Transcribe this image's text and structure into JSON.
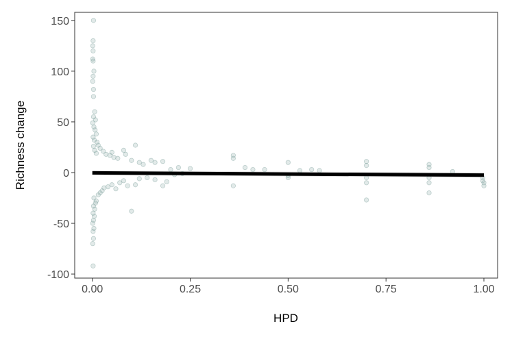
{
  "chart_data": {
    "type": "scatter",
    "title": "",
    "xlabel": "HPD",
    "ylabel": "Richness change",
    "xlim": [
      -0.045,
      1.035
    ],
    "ylim": [
      -104,
      158
    ],
    "x_ticks": [
      0,
      0.25,
      0.5,
      0.75,
      1
    ],
    "x_tick_labels": [
      "0.00",
      "0.25",
      "0.50",
      "0.75",
      "1.00"
    ],
    "y_ticks": [
      -100,
      -50,
      0,
      50,
      100,
      150
    ],
    "y_tick_labels": [
      "-100",
      "-50",
      "0",
      "50",
      "100",
      "150"
    ],
    "grid": false,
    "point_color": "#7a9e9a",
    "point_opacity": 0.22,
    "series": [
      {
        "type": "scatter",
        "points": [
          [
            0.003,
            150
          ],
          [
            0.002,
            130
          ],
          [
            0.001,
            125
          ],
          [
            0.002,
            120
          ],
          [
            0.001,
            112
          ],
          [
            0.002,
            110
          ],
          [
            0.004,
            100
          ],
          [
            0.002,
            95
          ],
          [
            0.001,
            90
          ],
          [
            0.003,
            82
          ],
          [
            0.003,
            75
          ],
          [
            0.006,
            60
          ],
          [
            0.003,
            55
          ],
          [
            0.008,
            52
          ],
          [
            0.001,
            49
          ],
          [
            0.004,
            45
          ],
          [
            0.007,
            42
          ],
          [
            0.01,
            38
          ],
          [
            0.002,
            35
          ],
          [
            0.005,
            32
          ],
          [
            0.012,
            30
          ],
          [
            0.015,
            27
          ],
          [
            0.003,
            26
          ],
          [
            0.02,
            24
          ],
          [
            0.006,
            22
          ],
          [
            0.028,
            21
          ],
          [
            0.01,
            19
          ],
          [
            0.035,
            18
          ],
          [
            0.045,
            17
          ],
          [
            0.05,
            20
          ],
          [
            0.055,
            15
          ],
          [
            0.065,
            14
          ],
          [
            0.08,
            22
          ],
          [
            0.085,
            18
          ],
          [
            0.1,
            12
          ],
          [
            0.11,
            27
          ],
          [
            0.12,
            10
          ],
          [
            0.13,
            8
          ],
          [
            0.15,
            12
          ],
          [
            0.16,
            10
          ],
          [
            0.18,
            11
          ],
          [
            0.2,
            3
          ],
          [
            0.22,
            5
          ],
          [
            0.25,
            4
          ],
          [
            0.36,
            17
          ],
          [
            0.36,
            14
          ],
          [
            0.36,
            -13
          ],
          [
            0.39,
            5
          ],
          [
            0.41,
            3
          ],
          [
            0.44,
            3
          ],
          [
            0.5,
            10
          ],
          [
            0.5,
            -3
          ],
          [
            0.5,
            -5
          ],
          [
            0.53,
            2
          ],
          [
            0.56,
            3
          ],
          [
            0.58,
            2
          ],
          [
            0.7,
            11
          ],
          [
            0.7,
            7
          ],
          [
            0.7,
            -5
          ],
          [
            0.7,
            -10
          ],
          [
            0.7,
            -27
          ],
          [
            0.86,
            8
          ],
          [
            0.86,
            5
          ],
          [
            0.86,
            -5
          ],
          [
            0.86,
            -10
          ],
          [
            0.86,
            -20
          ],
          [
            0.92,
            1
          ],
          [
            0.997,
            -5
          ],
          [
            0.997,
            -8
          ],
          [
            1,
            -10
          ],
          [
            1,
            -13
          ],
          [
            0.002,
            -92
          ],
          [
            0.001,
            -70
          ],
          [
            0.003,
            -65
          ],
          [
            0.002,
            -58
          ],
          [
            0.004,
            -55
          ],
          [
            0.001,
            -50
          ],
          [
            0.003,
            -47
          ],
          [
            0.005,
            -43
          ],
          [
            0.002,
            -40
          ],
          [
            0.006,
            -36
          ],
          [
            0.003,
            -33
          ],
          [
            0.008,
            -30
          ],
          [
            0.01,
            -28
          ],
          [
            0.004,
            -25
          ],
          [
            0.015,
            -22
          ],
          [
            0.02,
            -20
          ],
          [
            0.025,
            -18
          ],
          [
            0.03,
            -15
          ],
          [
            0.04,
            -14
          ],
          [
            0.05,
            -12
          ],
          [
            0.06,
            -16
          ],
          [
            0.07,
            -10
          ],
          [
            0.08,
            -8
          ],
          [
            0.09,
            -13
          ],
          [
            0.1,
            -38
          ],
          [
            0.11,
            -12
          ],
          [
            0.12,
            -6
          ],
          [
            0.14,
            -5
          ],
          [
            0.16,
            -7
          ],
          [
            0.18,
            -13
          ],
          [
            0.19,
            -9
          ],
          [
            0.21,
            -2
          ],
          [
            0.23,
            -1
          ]
        ]
      },
      {
        "name": "",
        "type": "line",
        "x": [
          0,
          1
        ],
        "y": [
          -0.3,
          -2.5
        ],
        "ribbon_lower": [
          -2.5,
          -5
        ],
        "ribbon_upper": [
          1.9,
          0
        ],
        "line_color": "#000000",
        "ribbon_color": "#c8c8c8"
      }
    ]
  }
}
